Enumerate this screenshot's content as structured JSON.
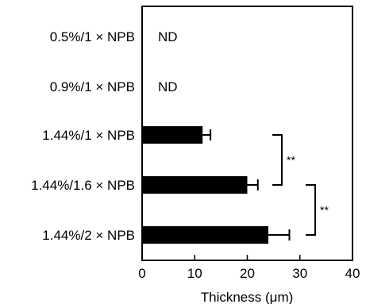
{
  "chart_data": {
    "type": "bar",
    "orientation": "horizontal",
    "categories": [
      "0.5%/1 × NPB",
      "0.9%/1 × NPB",
      "1.44%/1 × NPB",
      "1.44%/1.6 × NPB",
      "1.44%/2 × NPB"
    ],
    "values": [
      null,
      null,
      11.5,
      20,
      24
    ],
    "errors": [
      null,
      null,
      1.5,
      2,
      4
    ],
    "value_labels": [
      "ND",
      "ND",
      "",
      "",
      ""
    ],
    "xlabel": "Thickness (μm)",
    "ylabel": "",
    "xlim": [
      0,
      40
    ],
    "xticks": [
      "0",
      "10",
      "20",
      "30",
      "40"
    ],
    "bar_color": "#000000",
    "grid": false,
    "significance": [
      {
        "between": [
          2,
          3
        ],
        "label": "**"
      },
      {
        "between": [
          3,
          4
        ],
        "label": "**"
      }
    ]
  }
}
